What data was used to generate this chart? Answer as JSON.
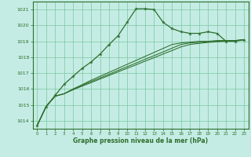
{
  "title": "Graphe pression niveau de la mer (hPa)",
  "bg_color": "#c5ece4",
  "grid_color": "#78c8a0",
  "line_color": "#2d6e2d",
  "xlim": [
    -0.5,
    23.5
  ],
  "ylim": [
    1013.5,
    1021.5
  ],
  "yticks": [
    1014,
    1015,
    1016,
    1017,
    1018,
    1019,
    1020,
    1021
  ],
  "xticks": [
    0,
    1,
    2,
    3,
    4,
    5,
    6,
    7,
    8,
    9,
    10,
    11,
    12,
    13,
    14,
    15,
    16,
    17,
    18,
    19,
    20,
    21,
    22,
    23
  ],
  "series_main": [
    1013.7,
    1014.9,
    1015.6,
    1016.3,
    1016.8,
    1017.3,
    1017.7,
    1018.2,
    1018.8,
    1019.35,
    1020.2,
    1021.05,
    1021.05,
    1021.0,
    1020.2,
    1019.8,
    1019.6,
    1019.5,
    1019.5,
    1019.6,
    1019.5,
    1019.0,
    1019.0,
    1019.1
  ],
  "series_linear": [
    [
      1013.7,
      1014.9,
      1015.55,
      1015.7,
      1016.0,
      1016.27,
      1016.55,
      1016.8,
      1017.05,
      1017.3,
      1017.55,
      1017.8,
      1018.05,
      1018.3,
      1018.55,
      1018.8,
      1018.9,
      1018.95,
      1019.0,
      1019.0,
      1019.05,
      1019.05,
      1019.05,
      1019.1
    ],
    [
      1013.7,
      1014.9,
      1015.55,
      1015.7,
      1016.0,
      1016.23,
      1016.47,
      1016.7,
      1016.93,
      1017.17,
      1017.4,
      1017.63,
      1017.87,
      1018.1,
      1018.33,
      1018.57,
      1018.8,
      1018.9,
      1018.93,
      1018.97,
      1019.0,
      1019.03,
      1019.05,
      1019.1
    ],
    [
      1013.7,
      1014.9,
      1015.55,
      1015.7,
      1015.95,
      1016.18,
      1016.4,
      1016.63,
      1016.85,
      1017.08,
      1017.3,
      1017.52,
      1017.75,
      1017.97,
      1018.2,
      1018.42,
      1018.65,
      1018.8,
      1018.87,
      1018.93,
      1018.97,
      1019.0,
      1019.03,
      1019.1
    ]
  ]
}
